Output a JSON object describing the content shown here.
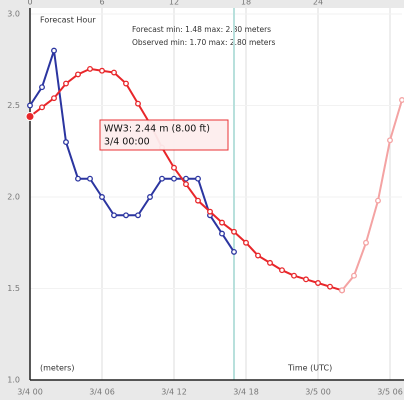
{
  "chart_data": {
    "type": "line",
    "top_axis_title": "Forecast Hour",
    "forecast_stats": "Forecast min: 1.48 max: 2.80 meters",
    "observed_stats": "Observed min: 1.70 max: 2.80 meters",
    "y_axis_label": "(meters)",
    "x_axis_label": "Time (UTC)",
    "tooltip": [
      "WW3: 2.44 m (8.00 ft)",
      "3/4 00:00"
    ],
    "tooltip_x": 0,
    "marker_x": 17,
    "x": [
      0,
      1,
      2,
      3,
      4,
      5,
      6,
      7,
      8,
      9,
      10,
      11,
      12,
      13,
      14,
      15,
      16,
      17,
      18,
      19,
      20,
      21,
      22,
      23,
      24,
      25,
      26,
      27,
      28,
      29,
      30,
      31
    ],
    "xlim": [
      0,
      31
    ],
    "xticks": [
      {
        "value": 0,
        "label": "3/4 00"
      },
      {
        "value": 6,
        "label": "3/4 06"
      },
      {
        "value": 12,
        "label": "3/4 12"
      },
      {
        "value": 18,
        "label": "3/4 18"
      },
      {
        "value": 24,
        "label": "3/5 00"
      },
      {
        "value": 30,
        "label": "3/5 06"
      }
    ],
    "x2ticks": [
      0,
      6,
      12,
      18,
      24
    ],
    "ylim": [
      1,
      3
    ],
    "yticks": [
      {
        "value": 1,
        "label": "1.0"
      },
      {
        "value": 1.5,
        "label": "1.5"
      },
      {
        "value": 2,
        "label": "2.0"
      },
      {
        "value": 2.5,
        "label": "2.5"
      },
      {
        "value": 3,
        "label": "3.0"
      }
    ],
    "grid": true,
    "series": [
      {
        "color": "#2b35a0",
        "values": [
          2.5,
          2.6,
          2.8,
          2.3,
          2.1,
          2.1,
          2.0,
          1.9,
          1.9,
          1.9,
          2.0,
          2.1,
          2.1,
          2.1,
          2.1,
          1.9,
          1.8,
          1.7,
          null,
          null,
          null,
          null,
          null,
          null,
          null,
          null,
          null,
          null,
          null,
          null,
          null,
          null
        ]
      },
      {
        "color": "#e8262a",
        "values": [
          2.44,
          2.49,
          2.54,
          2.62,
          2.67,
          2.7,
          2.69,
          2.68,
          2.62,
          2.51,
          2.4,
          2.27,
          2.16,
          2.07,
          1.98,
          1.92,
          1.86,
          1.81,
          1.75,
          1.68,
          1.64,
          1.6,
          1.57,
          1.55,
          1.53,
          1.51,
          1.49,
          null,
          null,
          null,
          null,
          null
        ]
      },
      {
        "color": "#f4a3a3",
        "values": [
          null,
          null,
          null,
          null,
          null,
          null,
          null,
          null,
          null,
          null,
          null,
          null,
          null,
          null,
          null,
          null,
          null,
          null,
          null,
          null,
          null,
          null,
          null,
          null,
          null,
          null,
          1.49,
          1.57,
          1.75,
          1.98,
          2.31,
          2.53
        ]
      }
    ]
  }
}
